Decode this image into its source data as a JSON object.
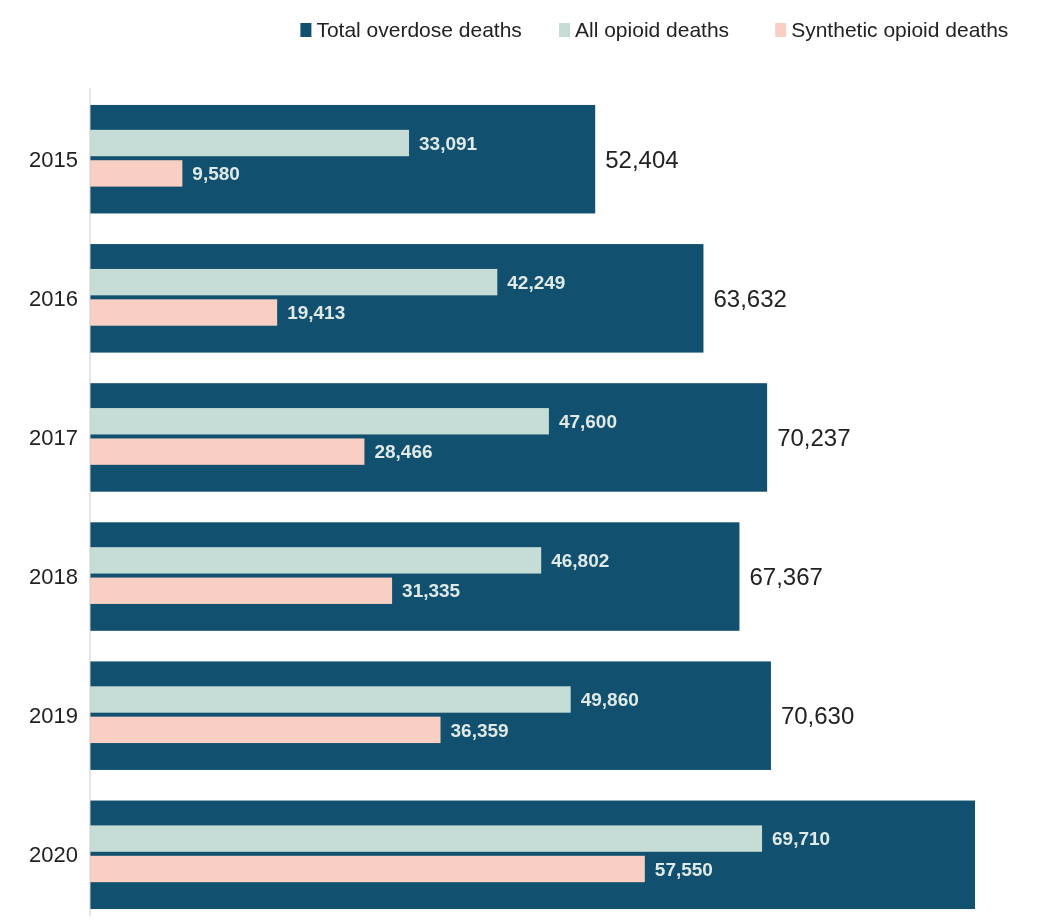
{
  "chart_data": {
    "type": "bar",
    "orientation": "horizontal",
    "legend": "top right",
    "categories": [
      "2015",
      "2016",
      "2017",
      "2018",
      "2019",
      "2020"
    ],
    "series": [
      {
        "name": "Total overdose deaths",
        "color": "#12506f",
        "values": [
          52404,
          63632,
          70237,
          67367,
          70630,
          91799
        ],
        "value_labels": [
          "52,404",
          "63,632",
          "70,237",
          "67,367",
          "70,630",
          null
        ]
      },
      {
        "name": "All opioid deaths",
        "color": "#c5ddd6",
        "values": [
          33091,
          42249,
          47600,
          46802,
          49860,
          69710
        ],
        "value_labels": [
          "33,091",
          "42,249",
          "47,600",
          "46,802",
          "49,860",
          "69,710"
        ]
      },
      {
        "name": "Synthetic opioid deaths",
        "color": "#f8cfc2",
        "values": [
          9580,
          19413,
          28466,
          31335,
          36359,
          57550
        ],
        "value_labels": [
          "9,580",
          "19,413",
          "28,466",
          "31,335",
          "36,359",
          "57,550"
        ]
      }
    ]
  }
}
